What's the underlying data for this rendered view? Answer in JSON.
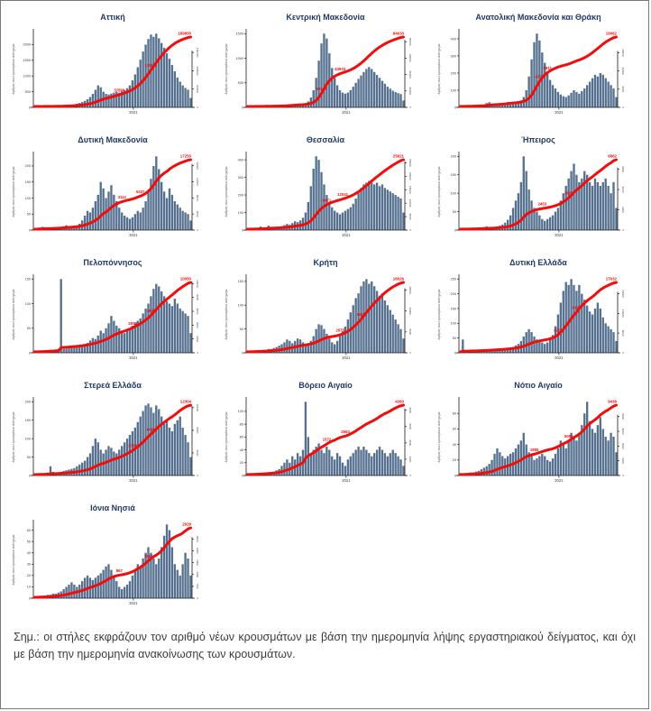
{
  "note": "Σημ.:  οι στήλες εκφράζουν τον αριθμό νέων κρουσμάτων με βάση την ημερομηνία λήψης εργαστηριακού δείγματος, και όχι με βάση την ημερομηνία ανακοίνωσης των κρουσμάτων.",
  "colors": {
    "bar": "#55718f",
    "line": "#f20d0d",
    "annotation": "#f20d0d",
    "title": "#1f3968",
    "axis_text": "#3a3a3a",
    "axis_line": "#1a1a1a"
  },
  "axis": {
    "y_left_label": "Αριθμός νέων κρουσμάτων ανά ημέρα",
    "x_tick_label": "2021",
    "x_tick_pos": 0.63
  },
  "chart_data": [
    {
      "type": "bar+line",
      "title": "Αττική",
      "y_left_ticks": [
        0,
        500,
        1000,
        1500,
        2000
      ],
      "y_right_ticks": [
        0,
        50000,
        100000,
        150000
      ],
      "total": "189800",
      "annotations": [
        {
          "x": 0.55,
          "label": "37890"
        },
        {
          "x": 0.75,
          "label": "115600"
        }
      ],
      "bars": [
        8,
        8,
        10,
        10,
        12,
        14,
        16,
        18,
        22,
        26,
        30,
        38,
        48,
        60,
        75,
        95,
        115,
        140,
        170,
        210,
        260,
        330,
        430,
        560,
        700,
        640,
        500,
        430,
        410,
        440,
        470,
        500,
        470,
        510,
        550,
        610,
        700,
        860,
        1050,
        1280,
        1520,
        1780,
        2000,
        2180,
        2320,
        2250,
        2350,
        2200,
        2050,
        1900,
        1720,
        1550,
        1350,
        1150,
        950,
        820,
        700,
        620,
        560,
        300
      ]
    },
    {
      "type": "bar+line",
      "title": "Κεντρική Μακεδονία",
      "y_left_ticks": [
        0,
        500,
        1000,
        1500
      ],
      "y_right_ticks": [
        0,
        20000,
        40000,
        60000,
        80000
      ],
      "total": "84633",
      "annotations": [
        {
          "x": 0.48,
          "label": "29150"
        },
        {
          "x": 0.6,
          "label": "44933"
        }
      ],
      "bars": [
        5,
        5,
        6,
        6,
        8,
        8,
        10,
        10,
        12,
        14,
        16,
        18,
        20,
        25,
        30,
        40,
        50,
        60,
        70,
        60,
        50,
        60,
        80,
        120,
        200,
        350,
        600,
        950,
        1300,
        1500,
        1400,
        1100,
        800,
        600,
        450,
        350,
        300,
        280,
        300,
        350,
        420,
        500,
        580,
        650,
        720,
        780,
        820,
        780,
        720,
        660,
        600,
        540,
        480,
        420,
        380,
        340,
        310,
        290,
        270,
        140
      ]
    },
    {
      "type": "bar+line",
      "title": "Ανατολική Μακεδονία και Θράκη",
      "y_left_ticks": [
        0,
        100,
        200,
        300,
        400
      ],
      "y_right_ticks": [
        0,
        5000,
        10000,
        15000
      ],
      "total": "19062",
      "annotations": [
        {
          "x": 0.5,
          "label": "4733"
        },
        {
          "x": 0.56,
          "label": "9911"
        }
      ],
      "bars": [
        4,
        4,
        5,
        5,
        6,
        6,
        8,
        8,
        10,
        12,
        25,
        30,
        20,
        15,
        12,
        15,
        20,
        25,
        30,
        25,
        20,
        25,
        30,
        40,
        60,
        100,
        180,
        280,
        380,
        430,
        390,
        320,
        260,
        200,
        160,
        130,
        110,
        90,
        75,
        65,
        60,
        70,
        85,
        100,
        90,
        80,
        95,
        110,
        130,
        150,
        170,
        190,
        180,
        200,
        190,
        170,
        150,
        130,
        110,
        60
      ]
    },
    {
      "type": "bar+line",
      "title": "Δυτική Μακεδονία",
      "y_left_ticks": [
        0,
        50,
        100,
        150,
        200
      ],
      "y_right_ticks": [
        0,
        4000,
        8000,
        12000,
        16000
      ],
      "total": "17250",
      "annotations": [
        {
          "x": 0.56,
          "label": "3112"
        },
        {
          "x": 0.68,
          "label": "5437"
        }
      ],
      "bars": [
        3,
        4,
        8,
        10,
        6,
        4,
        4,
        5,
        6,
        8,
        10,
        12,
        15,
        12,
        10,
        12,
        15,
        20,
        30,
        45,
        60,
        55,
        70,
        90,
        110,
        150,
        130,
        100,
        120,
        140,
        110,
        90,
        70,
        55,
        45,
        40,
        35,
        40,
        50,
        60,
        55,
        70,
        90,
        120,
        160,
        200,
        230,
        190,
        150,
        120,
        100,
        130,
        110,
        90,
        80,
        70,
        60,
        55,
        50,
        30
      ]
    },
    {
      "type": "bar+line",
      "title": "Θεσσαλία",
      "y_left_ticks": [
        0,
        100,
        200,
        300,
        400
      ],
      "y_right_ticks": [
        0,
        5000,
        10000,
        15000,
        20000,
        25000
      ],
      "total": "25821",
      "annotations": [
        {
          "x": 0.5,
          "label": "8471"
        },
        {
          "x": 0.61,
          "label": "12041"
        }
      ],
      "bars": [
        6,
        6,
        8,
        8,
        10,
        20,
        12,
        10,
        25,
        15,
        12,
        15,
        18,
        22,
        28,
        35,
        30,
        40,
        50,
        45,
        55,
        70,
        100,
        160,
        250,
        350,
        420,
        400,
        330,
        260,
        200,
        160,
        130,
        110,
        100,
        90,
        100,
        110,
        120,
        130,
        150,
        180,
        210,
        240,
        260,
        270,
        280,
        270,
        260,
        270,
        250,
        260,
        240,
        230,
        220,
        210,
        200,
        190,
        180,
        100
      ]
    },
    {
      "type": "bar+line",
      "title": "Ήπειρος",
      "y_left_ticks": [
        0,
        50,
        100,
        150,
        200
      ],
      "y_right_ticks": [
        0,
        2000,
        4000,
        6000
      ],
      "total": "6862",
      "annotations": [
        {
          "x": 0.52,
          "label": "2453"
        },
        {
          "x": 0.7,
          "label": "3867"
        }
      ],
      "bars": [
        2,
        2,
        3,
        3,
        4,
        4,
        5,
        5,
        6,
        8,
        10,
        8,
        6,
        8,
        10,
        12,
        15,
        20,
        28,
        40,
        60,
        80,
        100,
        130,
        200,
        160,
        110,
        80,
        60,
        50,
        40,
        30,
        25,
        30,
        35,
        40,
        50,
        60,
        80,
        100,
        120,
        140,
        160,
        180,
        150,
        130,
        140,
        160,
        150,
        130,
        120,
        140,
        130,
        120,
        130,
        140,
        120,
        100,
        130,
        60
      ]
    },
    {
      "type": "bar+line",
      "title": "Πελοπόννησος",
      "y_left_ticks": [
        0,
        50,
        100,
        150
      ],
      "y_right_ticks": [
        0,
        2000,
        4000,
        6000,
        8000,
        10000
      ],
      "total": "10050",
      "annotations": [
        {
          "x": 0.62,
          "label": "2870"
        },
        {
          "x": 0.74,
          "label": "4930"
        }
      ],
      "bars": [
        3,
        3,
        4,
        4,
        5,
        5,
        6,
        6,
        7,
        8,
        150,
        8,
        8,
        9,
        10,
        10,
        12,
        14,
        16,
        18,
        20,
        25,
        30,
        28,
        35,
        45,
        40,
        50,
        60,
        75,
        65,
        55,
        50,
        45,
        40,
        45,
        50,
        55,
        60,
        65,
        70,
        80,
        90,
        100,
        115,
        130,
        140,
        135,
        125,
        115,
        105,
        100,
        95,
        110,
        100,
        90,
        85,
        80,
        75,
        40
      ]
    },
    {
      "type": "bar+line",
      "title": "Κρήτη",
      "y_left_ticks": [
        0,
        50,
        100,
        150
      ],
      "y_right_ticks": [
        0,
        5000,
        10000,
        15000
      ],
      "total": "16626",
      "annotations": [
        {
          "x": 0.6,
          "label": "2675"
        },
        {
          "x": 0.73,
          "label": "8612"
        }
      ],
      "bars": [
        3,
        3,
        4,
        4,
        5,
        5,
        6,
        6,
        8,
        8,
        10,
        12,
        15,
        18,
        22,
        28,
        25,
        20,
        25,
        30,
        28,
        22,
        18,
        20,
        25,
        35,
        50,
        60,
        58,
        50,
        40,
        30,
        22,
        18,
        25,
        35,
        45,
        55,
        70,
        85,
        100,
        115,
        125,
        140,
        150,
        155,
        145,
        150,
        140,
        130,
        120,
        125,
        110,
        100,
        90,
        80,
        70,
        60,
        50,
        30
      ]
    },
    {
      "type": "bar+line",
      "title": "Δυτική Ελλάδα",
      "y_left_ticks": [
        0,
        50,
        100,
        150,
        200,
        250
      ],
      "y_right_ticks": [
        0,
        5000,
        10000,
        15000
      ],
      "total": "17632",
      "annotations": [
        {
          "x": 0.63,
          "label": "4251"
        },
        {
          "x": 0.74,
          "label": "9142"
        }
      ],
      "bars": [
        3,
        45,
        4,
        4,
        5,
        5,
        6,
        6,
        7,
        8,
        8,
        9,
        10,
        10,
        12,
        12,
        14,
        15,
        16,
        18,
        20,
        25,
        30,
        40,
        55,
        70,
        80,
        70,
        55,
        45,
        40,
        35,
        30,
        35,
        45,
        60,
        90,
        130,
        170,
        210,
        240,
        230,
        250,
        230,
        210,
        230,
        200,
        180,
        160,
        140,
        130,
        150,
        170,
        150,
        120,
        100,
        90,
        80,
        70,
        40
      ]
    },
    {
      "type": "bar+line",
      "title": "Στερεά Ελλάδα",
      "y_left_ticks": [
        0,
        50,
        100,
        150,
        200
      ],
      "y_right_ticks": [
        0,
        4000,
        8000,
        12000
      ],
      "total": "12304",
      "annotations": [
        {
          "x": 0.63,
          "label": "2780"
        },
        {
          "x": 0.74,
          "label": "6410"
        }
      ],
      "bars": [
        4,
        4,
        5,
        5,
        6,
        8,
        25,
        10,
        8,
        8,
        10,
        12,
        14,
        16,
        18,
        20,
        25,
        30,
        35,
        40,
        50,
        60,
        80,
        100,
        90,
        70,
        60,
        70,
        80,
        75,
        65,
        60,
        70,
        80,
        90,
        100,
        110,
        120,
        130,
        145,
        160,
        175,
        190,
        195,
        185,
        170,
        190,
        180,
        160,
        140,
        150,
        130,
        120,
        140,
        150,
        160,
        130,
        110,
        90,
        50
      ]
    },
    {
      "type": "bar+line",
      "title": "Βόρειο Αιγαίο",
      "y_left_ticks": [
        0,
        20,
        40,
        60,
        80,
        100
      ],
      "y_right_ticks": [
        0,
        1000,
        2000,
        3000,
        4000
      ],
      "total": "4260",
      "annotations": [
        {
          "x": 0.5,
          "label": "1572"
        },
        {
          "x": 0.62,
          "label": "2563"
        }
      ],
      "bars": [
        2,
        2,
        2,
        3,
        3,
        3,
        4,
        4,
        5,
        5,
        6,
        8,
        10,
        15,
        20,
        25,
        20,
        30,
        25,
        35,
        30,
        40,
        115,
        60,
        35,
        40,
        45,
        50,
        40,
        35,
        45,
        40,
        30,
        25,
        35,
        30,
        20,
        15,
        25,
        30,
        35,
        40,
        45,
        40,
        45,
        40,
        35,
        30,
        35,
        40,
        45,
        40,
        35,
        30,
        35,
        40,
        35,
        30,
        25,
        15
      ]
    },
    {
      "type": "bar+line",
      "title": "Νότιο Αιγαίο",
      "y_left_ticks": [
        0,
        20,
        40,
        60,
        80
      ],
      "y_right_ticks": [
        0,
        2000,
        4000,
        6000,
        8000
      ],
      "total": "9438",
      "annotations": [
        {
          "x": 0.48,
          "label": "1895"
        },
        {
          "x": 0.7,
          "label": "5055"
        }
      ],
      "bars": [
        2,
        2,
        3,
        3,
        4,
        4,
        5,
        6,
        8,
        10,
        12,
        15,
        20,
        28,
        35,
        30,
        25,
        22,
        25,
        28,
        30,
        35,
        40,
        45,
        55,
        40,
        30,
        25,
        20,
        22,
        25,
        28,
        25,
        20,
        18,
        22,
        28,
        35,
        45,
        40,
        35,
        45,
        55,
        50,
        45,
        55,
        65,
        80,
        95,
        70,
        60,
        55,
        65,
        75,
        60,
        50,
        45,
        55,
        50,
        30
      ]
    },
    {
      "type": "bar+line",
      "title": "Ιόνια Νησιά",
      "y_left_ticks": [
        0,
        10,
        20,
        30,
        40,
        50,
        60
      ],
      "y_right_ticks": [
        0,
        500,
        1000,
        1500,
        2000,
        2500
      ],
      "total": "2929",
      "annotations": [
        {
          "x": 0.55,
          "label": "867"
        },
        {
          "x": 0.73,
          "label": "1512"
        }
      ],
      "bars": [
        1,
        1,
        2,
        2,
        2,
        3,
        3,
        4,
        4,
        5,
        6,
        8,
        10,
        12,
        14,
        12,
        10,
        12,
        15,
        18,
        20,
        18,
        16,
        18,
        20,
        22,
        25,
        28,
        30,
        25,
        20,
        15,
        10,
        8,
        10,
        12,
        15,
        20,
        25,
        30,
        28,
        35,
        40,
        45,
        40,
        35,
        30,
        35,
        45,
        55,
        65,
        60,
        45,
        30,
        25,
        20,
        30,
        40,
        35,
        20
      ]
    }
  ]
}
